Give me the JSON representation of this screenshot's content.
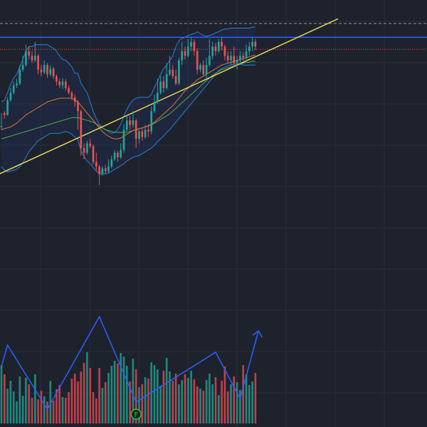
{
  "colors": {
    "background": "#1e222d",
    "grid": "#2a2e39",
    "up": "#26a69a",
    "down": "#ef5350",
    "volume_up": "#1f8a7e",
    "volume_down": "#c2404a",
    "bollinger": "#2f7fd6",
    "bollinger_fill": "rgba(41,98,255,0.08)",
    "ma_fast": "#e07b2c",
    "ma_slow": "#4caf50",
    "trendline": "#e6d45a",
    "horizontal_level": "#2962ff",
    "dashed_level": "#9598a1",
    "dotted_level": "#ef5350",
    "zigzag": "#2962ff",
    "marker_border": "#4caf50",
    "marker_fill": "#0f2b1a"
  },
  "marker": {
    "label": "F",
    "bar_index": 44
  },
  "chart_data": {
    "type": "candlestick",
    "x": [
      0,
      1,
      2,
      3,
      4,
      5,
      6,
      7,
      8,
      9,
      10,
      11,
      12,
      13,
      14,
      15,
      16,
      17,
      18,
      19,
      20,
      21,
      22,
      23,
      24,
      25,
      26,
      27,
      28,
      29,
      30,
      31,
      32,
      33,
      34,
      35,
      36,
      37,
      38,
      39,
      40,
      41,
      42,
      43,
      44,
      45,
      46,
      47,
      48,
      49,
      50,
      51,
      52,
      53,
      54,
      55,
      56,
      57,
      58,
      59,
      60,
      61,
      62,
      63,
      64,
      65,
      66,
      67,
      68,
      69,
      70,
      71,
      72,
      73,
      74,
      75,
      76,
      77,
      78,
      79,
      80,
      81,
      82,
      83
    ],
    "candles": [
      [
        123,
        124,
        138,
        120
      ],
      [
        138,
        136,
        140,
        132
      ],
      [
        136,
        152,
        155,
        135
      ],
      [
        152,
        160,
        165,
        150
      ],
      [
        160,
        168,
        172,
        158
      ],
      [
        168,
        170,
        175,
        165
      ],
      [
        170,
        185,
        190,
        168
      ],
      [
        185,
        190,
        200,
        183
      ],
      [
        190,
        205,
        212,
        188
      ],
      [
        205,
        200,
        210,
        196
      ],
      [
        200,
        195,
        205,
        192
      ],
      [
        195,
        200,
        215,
        193
      ],
      [
        200,
        185,
        202,
        180
      ],
      [
        185,
        182,
        190,
        178
      ],
      [
        182,
        190,
        195,
        180
      ],
      [
        190,
        180,
        192,
        176
      ],
      [
        180,
        186,
        190,
        178
      ],
      [
        186,
        178,
        188,
        175
      ],
      [
        178,
        172,
        180,
        168
      ],
      [
        172,
        168,
        175,
        165
      ],
      [
        168,
        172,
        176,
        164
      ],
      [
        172,
        165,
        175,
        162
      ],
      [
        165,
        160,
        168,
        158
      ],
      [
        160,
        155,
        162,
        152
      ],
      [
        155,
        150,
        158,
        145
      ],
      [
        150,
        140,
        152,
        120
      ],
      [
        140,
        100,
        142,
        92
      ],
      [
        100,
        95,
        105,
        88
      ],
      [
        95,
        105,
        108,
        93
      ],
      [
        105,
        102,
        110,
        100
      ],
      [
        102,
        85,
        104,
        82
      ],
      [
        85,
        80,
        95,
        75
      ],
      [
        80,
        72,
        82,
        60
      ],
      [
        72,
        78,
        80,
        70
      ],
      [
        78,
        75,
        82,
        72
      ],
      [
        75,
        80,
        88,
        73
      ],
      [
        80,
        88,
        92,
        78
      ],
      [
        88,
        95,
        98,
        86
      ],
      [
        95,
        90,
        97,
        85
      ],
      [
        90,
        98,
        105,
        88
      ],
      [
        98,
        120,
        126,
        95
      ],
      [
        120,
        130,
        135,
        118
      ],
      [
        130,
        125,
        135,
        120
      ],
      [
        125,
        130,
        140,
        122
      ],
      [
        130,
        110,
        132,
        100
      ],
      [
        110,
        118,
        120,
        105
      ],
      [
        118,
        112,
        122,
        108
      ],
      [
        112,
        120,
        125,
        110
      ],
      [
        120,
        118,
        126,
        112
      ],
      [
        118,
        140,
        145,
        115
      ],
      [
        140,
        150,
        158,
        138
      ],
      [
        150,
        160,
        175,
        148
      ],
      [
        160,
        172,
        178,
        158
      ],
      [
        172,
        165,
        178,
        160
      ],
      [
        165,
        180,
        192,
        163
      ],
      [
        180,
        185,
        200,
        178
      ],
      [
        185,
        178,
        190,
        175
      ],
      [
        178,
        170,
        185,
        168
      ],
      [
        170,
        195,
        198,
        168
      ],
      [
        195,
        205,
        215,
        190
      ],
      [
        205,
        200,
        210,
        196
      ],
      [
        200,
        210,
        218,
        198
      ],
      [
        210,
        215,
        220,
        205
      ],
      [
        215,
        205,
        218,
        200
      ],
      [
        205,
        185,
        208,
        180
      ],
      [
        185,
        190,
        192,
        182
      ],
      [
        190,
        180,
        195,
        178
      ],
      [
        180,
        190,
        198,
        175
      ],
      [
        190,
        200,
        218,
        188
      ],
      [
        200,
        210,
        215,
        196
      ],
      [
        210,
        205,
        214,
        200
      ],
      [
        205,
        215,
        218,
        203
      ],
      [
        215,
        210,
        220,
        206
      ],
      [
        210,
        200,
        212,
        195
      ],
      [
        200,
        195,
        205,
        192
      ],
      [
        195,
        200,
        205,
        190
      ],
      [
        200,
        192,
        210,
        188
      ],
      [
        192,
        195,
        200,
        185
      ],
      [
        195,
        200,
        205,
        190
      ],
      [
        200,
        198,
        204,
        194
      ],
      [
        198,
        205,
        212,
        196
      ],
      [
        205,
        210,
        215,
        200
      ],
      [
        210,
        215,
        220,
        205
      ],
      [
        215,
        210,
        218,
        206
      ]
    ],
    "volume": [
      82,
      69,
      49,
      60,
      45,
      31,
      66,
      39,
      64,
      55,
      36,
      69,
      34,
      46,
      38,
      31,
      60,
      32,
      48,
      54,
      37,
      36,
      44,
      63,
      70,
      59,
      73,
      85,
      100,
      78,
      44,
      35,
      78,
      50,
      58,
      71,
      81,
      88,
      84,
      99,
      94,
      81,
      59,
      91,
      76,
      51,
      55,
      65,
      63,
      86,
      82,
      76,
      53,
      74,
      92,
      73,
      60,
      70,
      55,
      61,
      69,
      64,
      74,
      62,
      52,
      49,
      46,
      61,
      70,
      55,
      65,
      40,
      60,
      80,
      45,
      55,
      66,
      58,
      47,
      82,
      69,
      54,
      59,
      71
    ],
    "bollinger": {
      "upper": [
        150,
        152,
        160,
        169,
        176,
        180,
        188,
        196,
        205,
        210,
        210,
        212,
        212,
        212,
        212,
        212,
        210,
        208,
        205,
        200,
        196,
        195,
        192,
        188,
        181,
        181,
        170,
        165,
        160,
        150,
        140,
        132,
        126,
        122,
        120,
        118,
        116,
        117,
        120,
        126,
        135,
        142,
        148,
        152,
        154,
        155,
        155,
        155,
        155,
        158,
        166,
        172,
        180,
        186,
        190,
        195,
        200,
        210,
        216,
        219,
        220,
        222,
        223,
        224,
        226,
        224,
        222,
        221,
        222,
        223,
        225,
        226,
        228,
        229,
        229,
        230,
        230,
        230,
        230,
        230,
        230,
        230,
        231,
        231
      ],
      "lower": [
        80,
        76,
        74,
        75,
        76,
        77,
        80,
        84,
        90,
        96,
        100,
        104,
        108,
        110,
        112,
        114,
        116,
        116,
        116,
        116,
        117,
        118,
        117,
        115,
        112,
        109,
        97,
        91,
        86,
        83,
        79,
        75,
        72,
        72,
        72,
        73,
        75,
        77,
        79,
        81,
        83,
        86,
        88,
        90,
        91,
        92,
        94,
        96,
        98,
        100,
        103,
        107,
        110,
        113,
        117,
        120,
        124,
        128,
        132,
        136,
        140,
        144,
        148,
        152,
        156,
        160,
        164,
        168,
        172,
        176,
        180,
        184,
        186,
        188,
        189,
        190,
        191,
        191,
        191,
        190,
        190,
        190,
        190,
        190
      ]
    },
    "ma_fast": [
      120,
      121,
      122,
      123,
      125,
      127,
      130,
      133,
      136,
      138,
      140,
      142,
      144,
      146,
      148,
      150,
      151,
      152,
      153,
      154,
      154,
      154,
      154,
      154,
      152,
      150,
      146,
      142,
      138,
      134,
      130,
      126,
      122,
      118,
      115,
      113,
      111,
      110,
      110,
      111,
      113,
      115,
      117,
      119,
      120,
      121,
      122,
      123,
      124,
      126,
      128,
      131,
      134,
      137,
      140,
      143,
      146,
      150,
      154,
      158,
      162,
      165,
      168,
      171,
      174,
      176,
      178,
      180,
      182,
      184,
      186,
      188,
      190,
      191,
      192,
      193,
      194,
      195,
      196,
      197,
      198,
      199,
      200,
      201
    ],
    "ma_slow": [
      110,
      111,
      112,
      113,
      114,
      115,
      116,
      117,
      118,
      119,
      120,
      121,
      122,
      123,
      124,
      125,
      126,
      127,
      128,
      129,
      130,
      131,
      132,
      133,
      133,
      133,
      132,
      131,
      130,
      129,
      128,
      126,
      124,
      122,
      120,
      119,
      118,
      117,
      117,
      117,
      117,
      117,
      118,
      119,
      120,
      121,
      122,
      123,
      124,
      125,
      127,
      129,
      131,
      133,
      135,
      137,
      140,
      143,
      146,
      149,
      152,
      155,
      158,
      161,
      164,
      167,
      170,
      173,
      176,
      179,
      181,
      183,
      185,
      186,
      187,
      188,
      189,
      190,
      191,
      192,
      193,
      193,
      194,
      194
    ],
    "trendline": {
      "start": [
        -2,
        70
      ],
      "end": [
        110,
        240
      ]
    },
    "levels": {
      "horizontal": 220,
      "dashed": 235,
      "dotted": 207
    },
    "zigzag": [
      [
        0,
        80
      ],
      [
        2,
        110
      ],
      [
        15,
        20
      ],
      [
        32,
        150
      ],
      [
        44,
        30
      ],
      [
        70,
        100
      ],
      [
        78,
        35
      ],
      [
        84,
        130
      ]
    ],
    "zigzag_arrow": true,
    "ylim": [
      60,
      245
    ],
    "volume_max": 160,
    "grid": true
  }
}
